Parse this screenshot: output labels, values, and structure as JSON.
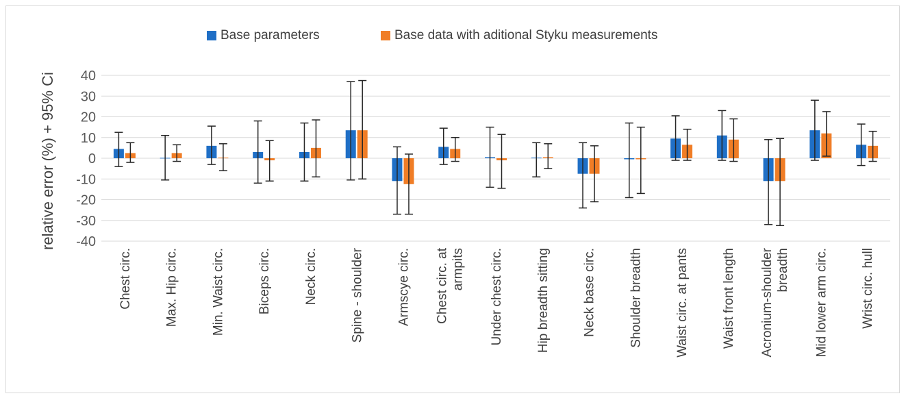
{
  "chart_data": {
    "type": "bar",
    "title": "",
    "xlabel": "",
    "ylabel": "relative error (%) + 95% Ci",
    "ylim": [
      -40,
      40
    ],
    "yticks": [
      40,
      30,
      20,
      10,
      0,
      -10,
      -20,
      -30,
      -40
    ],
    "grid": true,
    "legend_position": "top",
    "categories": [
      "Chest circ.",
      "Max. Hip circ.",
      "Min. Waist circ.",
      "Biceps circ.",
      "Neck circ.",
      "Spine - shoulder",
      "Armscye circ.",
      "Chest circ. at armpits",
      "Under chest circ.",
      "Hip breadth sitting",
      "Neck base circ.",
      "Shoulder breadth",
      "Waist circ. at pants",
      "Waist front length",
      "Acronium-shoulder breadth",
      "Mid lower arm circ.",
      "Wrist circ. hull"
    ],
    "category_lines": [
      [
        "Chest circ."
      ],
      [
        "Max. Hip circ."
      ],
      [
        "Min. Waist circ."
      ],
      [
        "Biceps circ."
      ],
      [
        "Neck circ."
      ],
      [
        "Spine - shoulder"
      ],
      [
        "Armscye circ."
      ],
      [
        "Chest circ. at",
        "armpits"
      ],
      [
        "Under chest circ."
      ],
      [
        "Hip breadth sitting"
      ],
      [
        "Neck base circ."
      ],
      [
        "Shoulder breadth"
      ],
      [
        "Waist circ. at pants"
      ],
      [
        "Waist front length"
      ],
      [
        "Acronium-shoulder",
        "breadth"
      ],
      [
        "Mid lower arm circ."
      ],
      [
        "Wrist circ. hull"
      ]
    ],
    "series": [
      {
        "name": "Base parameters",
        "color": "#1f6fc6",
        "values": [
          4.5,
          0.2,
          6,
          3,
          3,
          13.5,
          -11,
          5.5,
          0.5,
          0.3,
          -7.5,
          -0.5,
          9.5,
          11,
          -11,
          13.5,
          6.5
        ],
        "ci_low": [
          -4,
          -10.5,
          -3,
          -12,
          -11,
          -10.5,
          -27,
          -3,
          -14,
          -9,
          -24,
          -19,
          -1,
          -1,
          -32,
          -1,
          -3.5
        ],
        "ci_high": [
          12.5,
          11,
          15.5,
          18,
          17,
          37,
          5.5,
          14.5,
          15,
          7.5,
          7.5,
          17,
          20.5,
          23,
          9,
          28,
          16.5
        ]
      },
      {
        "name": "Base data with aditional Styku measurements",
        "color": "#f07d26",
        "values": [
          2.5,
          2.5,
          0.3,
          -1,
          5,
          13.5,
          -12.5,
          4.5,
          -1,
          0.5,
          -7.5,
          -0.5,
          6.5,
          9,
          -11,
          12,
          6
        ],
        "ci_low": [
          -2,
          -1.5,
          -6,
          -11,
          -9,
          -10,
          -27,
          -1.5,
          -14.5,
          -5,
          -21,
          -17,
          -1,
          -1.5,
          -32.5,
          1,
          -1.5
        ],
        "ci_high": [
          7.5,
          6.5,
          7,
          8.5,
          18.5,
          37.5,
          2,
          10,
          11.5,
          7,
          6,
          15,
          14,
          19,
          9.5,
          22.5,
          13
        ]
      }
    ]
  }
}
